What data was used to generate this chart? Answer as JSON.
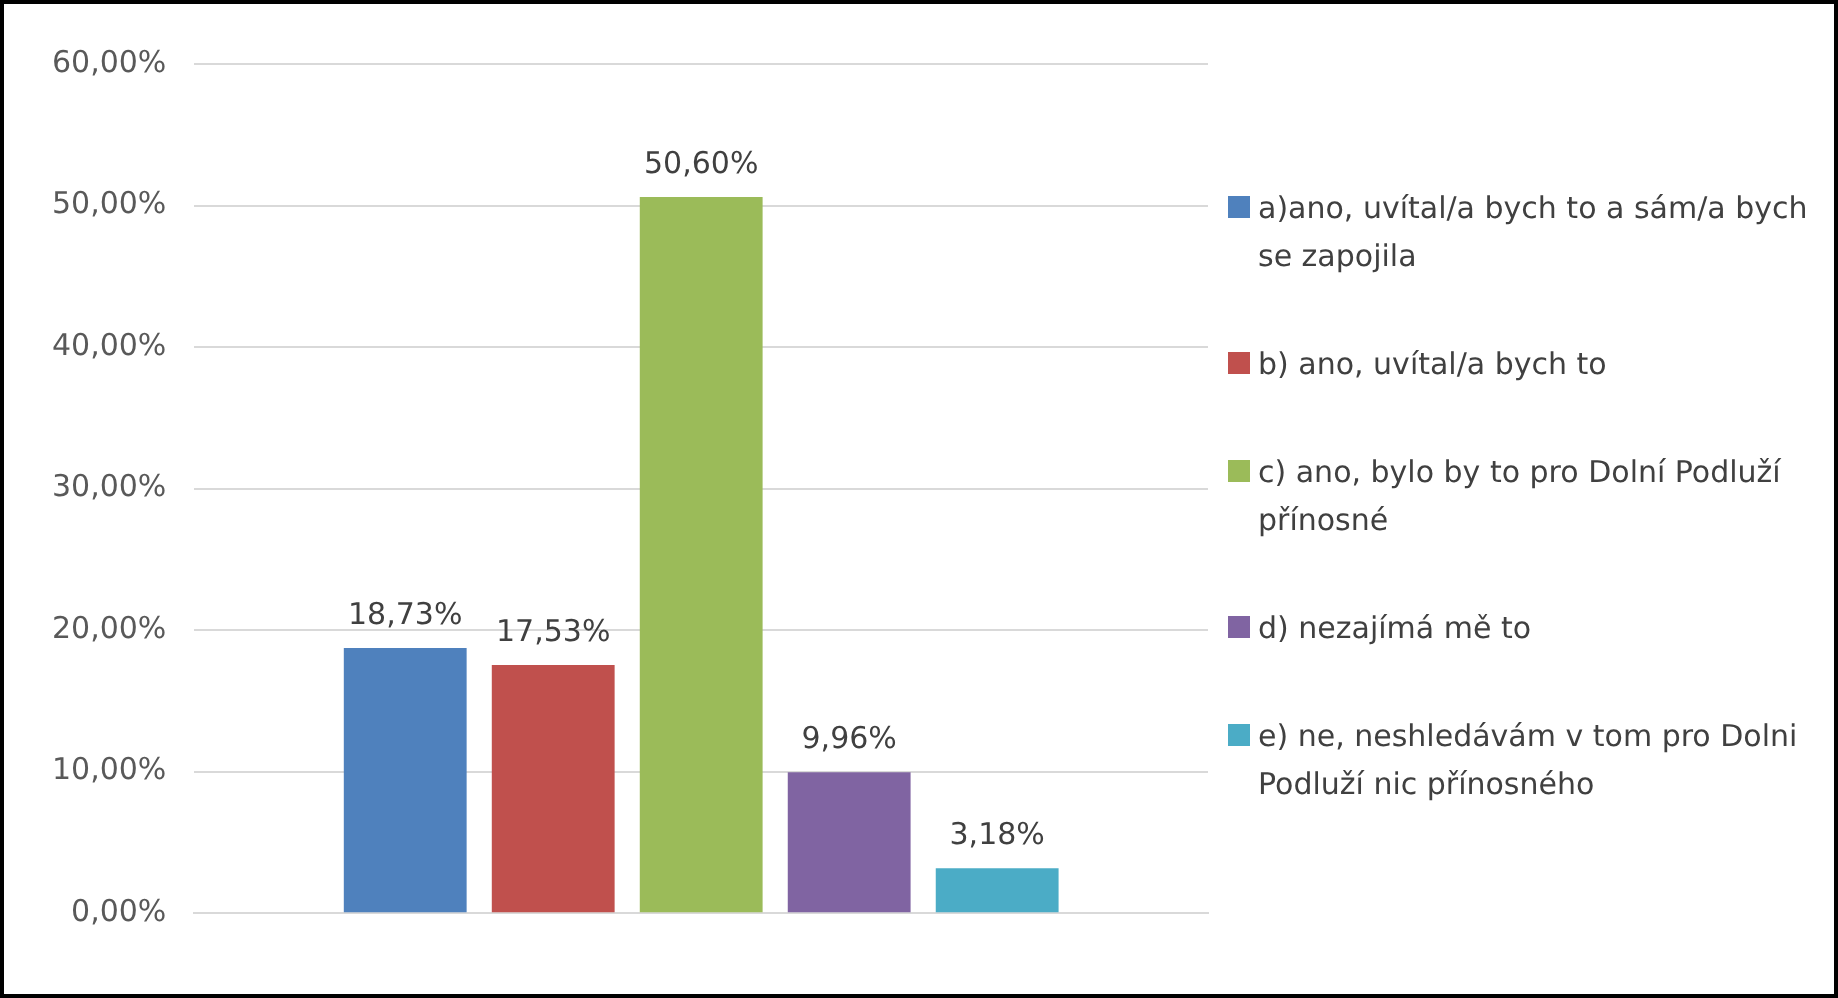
{
  "chart_data": {
    "type": "bar",
    "categories": [
      null
    ],
    "series": [
      {
        "name": "a)ano, uvítal/a bych to a sám/a bych se zapojila",
        "color": "#4f81bd",
        "values": [
          18.73
        ],
        "value_labels": [
          "18,73%"
        ]
      },
      {
        "name": "b) ano, uvítal/a bych to",
        "color": "#c0504d",
        "values": [
          17.53
        ],
        "value_labels": [
          "17,53%"
        ]
      },
      {
        "name": "c) ano, bylo by to pro Dolní Podluží přínosné",
        "color": "#9bbb59",
        "values": [
          50.6
        ],
        "value_labels": [
          "50,60%"
        ]
      },
      {
        "name": "d) nezajímá mě to",
        "color": "#8064a2",
        "values": [
          9.96
        ],
        "value_labels": [
          "9,96%"
        ]
      },
      {
        "name": "e) ne, neshledávám v tom pro Dolni Podluží nic přínosného",
        "color": "#4bacc6",
        "values": [
          3.18
        ],
        "value_labels": [
          "3,18%"
        ]
      }
    ],
    "ylim": [
      0,
      60
    ],
    "yticks": [
      {
        "value": 0,
        "label": "0,00%"
      },
      {
        "value": 10,
        "label": "10,00%"
      },
      {
        "value": 20,
        "label": "20,00%"
      },
      {
        "value": 30,
        "label": "30,00%"
      },
      {
        "value": 40,
        "label": "40,00%"
      },
      {
        "value": 50,
        "label": "50,00%"
      },
      {
        "value": 60,
        "label": "60,00%"
      }
    ],
    "grid": "y",
    "legend": "right"
  }
}
